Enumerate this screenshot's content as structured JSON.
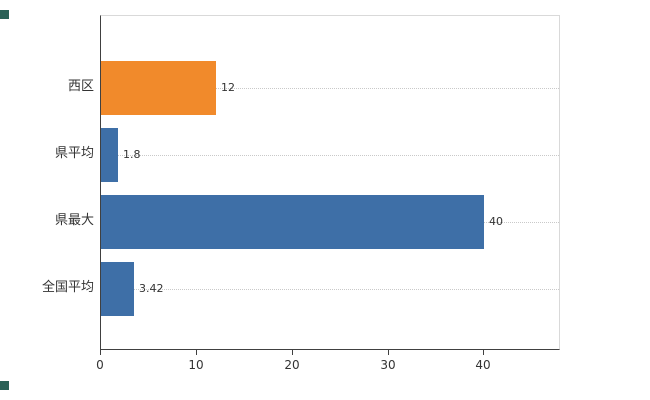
{
  "chart_data": {
    "type": "bar",
    "orientation": "horizontal",
    "title": "",
    "xlabel": "",
    "ylabel": "",
    "categories": [
      "西区",
      "県平均",
      "県最大",
      "全国平均"
    ],
    "values": [
      12,
      1.8,
      40,
      3.42
    ],
    "value_labels": [
      "12",
      "1.8",
      "40",
      "3.42"
    ],
    "bar_colors": [
      "#F18A2B",
      "#3E6FA7",
      "#3E6FA7",
      "#3E6FA7"
    ],
    "xlim": [
      0,
      48
    ],
    "x_ticks": [
      0,
      10,
      20,
      30,
      40
    ],
    "grid": "dotted horizontal lines at category centers",
    "legend": "none"
  },
  "colors": {
    "axis": "#404040",
    "plot_border_light": "#d9d9d9",
    "gridline": "#c9c9c9",
    "text": "#333333",
    "handle": "#2A6157"
  },
  "layout_values": {
    "note": "selection handles visible at top-left and bottom-left edges"
  }
}
